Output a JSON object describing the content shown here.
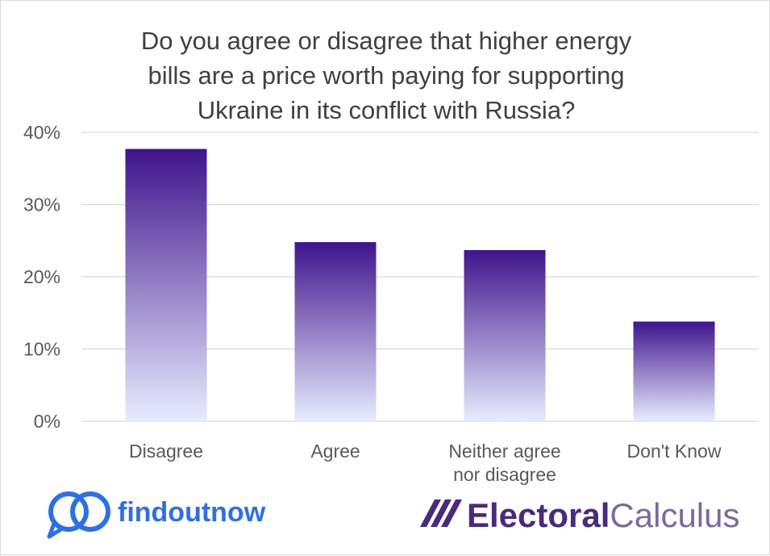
{
  "chart_data": {
    "type": "bar",
    "title_lines": [
      "Do you agree or disagree that higher energy",
      "bills are a price worth paying for supporting",
      "Ukraine in its conflict with Russia?"
    ],
    "categories": [
      [
        "Disagree"
      ],
      [
        "Agree"
      ],
      [
        "Neither agree",
        "nor disagree"
      ],
      [
        "Don't Know"
      ]
    ],
    "values": [
      37.7,
      24.8,
      23.7,
      13.8
    ],
    "ylim": [
      0,
      40
    ],
    "yticks": [
      0,
      10,
      20,
      30,
      40
    ],
    "ytick_labels": [
      "0%",
      "10%",
      "20%",
      "30%",
      "40%"
    ],
    "grid": true,
    "bar_color_top": "#3f148c",
    "bar_color_bottom": "#e8ecff"
  },
  "logos": {
    "left": "findoutnow",
    "right_bold": "Electoral",
    "right_light": "Calculus"
  }
}
